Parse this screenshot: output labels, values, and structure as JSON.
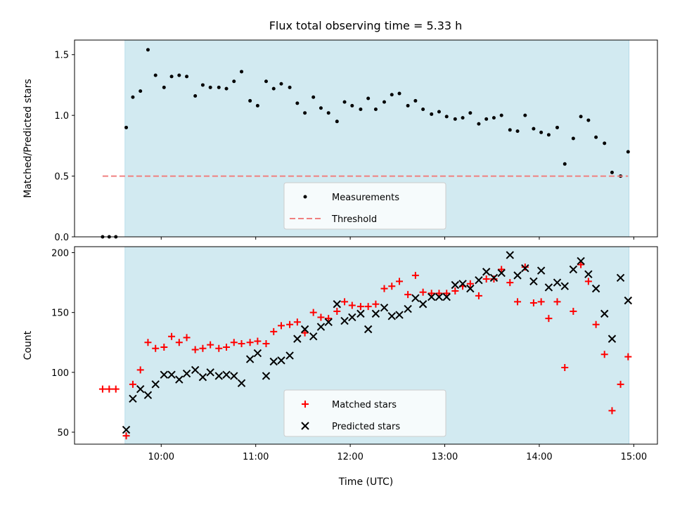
{
  "figure": {
    "title": "Flux total observing time = 5.33 h"
  },
  "colors": {
    "observing_band": "#add8e6",
    "measurements": "#000000",
    "threshold": "#f08080",
    "matched": "#ff0000",
    "predicted": "#000000"
  },
  "chart_data": [
    {
      "type": "scatter",
      "name": "ratio-panel",
      "xlabel": "",
      "ylabel": "Matched/Predicted stars",
      "x_unit": "hours UTC",
      "xlim": [
        9.083,
        15.25
      ],
      "ylim": [
        0.0,
        1.62
      ],
      "yticks": [
        0.0,
        0.5,
        1.0,
        1.5
      ],
      "ytick_labels": [
        "0.0",
        "0.5",
        "1.0",
        "1.5"
      ],
      "xticks": [
        10,
        11,
        12,
        13,
        14,
        15
      ],
      "shaded_region": [
        9.617,
        14.95
      ],
      "legend_position": "lower center",
      "series": [
        {
          "name": "Measurements",
          "marker": "dot",
          "points": [
            [
              9.38,
              0.0
            ],
            [
              9.45,
              0.0
            ],
            [
              9.52,
              0.0
            ],
            [
              9.63,
              0.9
            ],
            [
              9.7,
              1.15
            ],
            [
              9.78,
              1.2
            ],
            [
              9.86,
              1.54
            ],
            [
              9.94,
              1.33
            ],
            [
              10.03,
              1.23
            ],
            [
              10.11,
              1.32
            ],
            [
              10.19,
              1.33
            ],
            [
              10.27,
              1.32
            ],
            [
              10.36,
              1.16
            ],
            [
              10.44,
              1.25
            ],
            [
              10.52,
              1.23
            ],
            [
              10.61,
              1.23
            ],
            [
              10.69,
              1.22
            ],
            [
              10.77,
              1.28
            ],
            [
              10.85,
              1.36
            ],
            [
              10.94,
              1.12
            ],
            [
              11.02,
              1.08
            ],
            [
              11.11,
              1.28
            ],
            [
              11.19,
              1.22
            ],
            [
              11.27,
              1.26
            ],
            [
              11.36,
              1.23
            ],
            [
              11.44,
              1.1
            ],
            [
              11.52,
              1.02
            ],
            [
              11.61,
              1.15
            ],
            [
              11.69,
              1.06
            ],
            [
              11.77,
              1.02
            ],
            [
              11.86,
              0.95
            ],
            [
              11.94,
              1.11
            ],
            [
              12.02,
              1.08
            ],
            [
              12.11,
              1.05
            ],
            [
              12.19,
              1.14
            ],
            [
              12.27,
              1.05
            ],
            [
              12.36,
              1.11
            ],
            [
              12.44,
              1.17
            ],
            [
              12.52,
              1.18
            ],
            [
              12.61,
              1.08
            ],
            [
              12.69,
              1.12
            ],
            [
              12.77,
              1.05
            ],
            [
              12.86,
              1.01
            ],
            [
              12.94,
              1.03
            ],
            [
              13.02,
              0.99
            ],
            [
              13.11,
              0.97
            ],
            [
              13.19,
              0.98
            ],
            [
              13.27,
              1.02
            ],
            [
              13.36,
              0.93
            ],
            [
              13.44,
              0.97
            ],
            [
              13.52,
              0.98
            ],
            [
              13.6,
              1.0
            ],
            [
              13.69,
              0.88
            ],
            [
              13.77,
              0.87
            ],
            [
              13.85,
              1.0
            ],
            [
              13.94,
              0.89
            ],
            [
              14.02,
              0.86
            ],
            [
              14.1,
              0.84
            ],
            [
              14.19,
              0.9
            ],
            [
              14.27,
              0.6
            ],
            [
              14.36,
              0.81
            ],
            [
              14.44,
              0.99
            ],
            [
              14.52,
              0.96
            ],
            [
              14.6,
              0.82
            ],
            [
              14.69,
              0.77
            ],
            [
              14.77,
              0.53
            ],
            [
              14.86,
              0.5
            ],
            [
              14.94,
              0.7
            ]
          ]
        },
        {
          "name": "Threshold",
          "style": "dashed",
          "points": [
            [
              9.38,
              0.5
            ],
            [
              14.94,
              0.5
            ]
          ]
        }
      ]
    },
    {
      "type": "scatter",
      "name": "count-panel",
      "xlabel": "Time (UTC)",
      "ylabel": "Count",
      "x_unit": "hours UTC",
      "xlim": [
        9.083,
        15.25
      ],
      "ylim": [
        40,
        205
      ],
      "yticks": [
        50,
        100,
        150,
        200
      ],
      "ytick_labels": [
        "50",
        "100",
        "150",
        "200"
      ],
      "xticks": [
        10,
        11,
        12,
        13,
        14,
        15
      ],
      "xtick_labels": [
        "10:00",
        "11:00",
        "12:00",
        "13:00",
        "14:00",
        "15:00"
      ],
      "shaded_region": [
        9.617,
        14.95
      ],
      "legend_position": "lower center",
      "series": [
        {
          "name": "Matched stars",
          "marker": "plus",
          "points": [
            [
              9.38,
              86
            ],
            [
              9.45,
              86
            ],
            [
              9.52,
              86
            ],
            [
              9.63,
              47
            ],
            [
              9.7,
              90
            ],
            [
              9.78,
              102
            ],
            [
              9.86,
              125
            ],
            [
              9.94,
              120
            ],
            [
              10.03,
              121
            ],
            [
              10.11,
              130
            ],
            [
              10.19,
              125
            ],
            [
              10.27,
              129
            ],
            [
              10.36,
              119
            ],
            [
              10.44,
              120
            ],
            [
              10.52,
              123
            ],
            [
              10.61,
              120
            ],
            [
              10.69,
              121
            ],
            [
              10.77,
              125
            ],
            [
              10.85,
              124
            ],
            [
              10.94,
              125
            ],
            [
              11.02,
              126
            ],
            [
              11.11,
              124
            ],
            [
              11.19,
              134
            ],
            [
              11.27,
              139
            ],
            [
              11.36,
              140
            ],
            [
              11.44,
              142
            ],
            [
              11.52,
              133
            ],
            [
              11.61,
              150
            ],
            [
              11.69,
              146
            ],
            [
              11.77,
              145
            ],
            [
              11.86,
              151
            ],
            [
              11.94,
              159
            ],
            [
              12.02,
              156
            ],
            [
              12.11,
              155
            ],
            [
              12.19,
              155
            ],
            [
              12.27,
              157
            ],
            [
              12.36,
              170
            ],
            [
              12.44,
              172
            ],
            [
              12.52,
              176
            ],
            [
              12.61,
              165
            ],
            [
              12.69,
              181
            ],
            [
              12.77,
              167
            ],
            [
              12.86,
              166
            ],
            [
              12.94,
              166
            ],
            [
              13.02,
              166
            ],
            [
              13.11,
              168
            ],
            [
              13.19,
              172
            ],
            [
              13.27,
              174
            ],
            [
              13.36,
              164
            ],
            [
              13.44,
              178
            ],
            [
              13.52,
              178
            ],
            [
              13.6,
              186
            ],
            [
              13.69,
              175
            ],
            [
              13.77,
              159
            ],
            [
              13.85,
              188
            ],
            [
              13.94,
              158
            ],
            [
              14.02,
              159
            ],
            [
              14.1,
              145
            ],
            [
              14.19,
              159
            ],
            [
              14.27,
              104
            ],
            [
              14.36,
              151
            ],
            [
              14.44,
              190
            ],
            [
              14.52,
              176
            ],
            [
              14.6,
              140
            ],
            [
              14.69,
              115
            ],
            [
              14.77,
              68
            ],
            [
              14.86,
              90
            ],
            [
              14.94,
              113
            ]
          ]
        },
        {
          "name": "Predicted stars",
          "marker": "x",
          "points": [
            [
              9.63,
              52
            ],
            [
              9.7,
              78
            ],
            [
              9.78,
              86
            ],
            [
              9.86,
              81
            ],
            [
              9.94,
              90
            ],
            [
              10.03,
              98
            ],
            [
              10.11,
              98
            ],
            [
              10.19,
              94
            ],
            [
              10.27,
              99
            ],
            [
              10.36,
              102
            ],
            [
              10.44,
              96
            ],
            [
              10.52,
              100
            ],
            [
              10.61,
              97
            ],
            [
              10.69,
              98
            ],
            [
              10.77,
              97
            ],
            [
              10.85,
              91
            ],
            [
              10.94,
              111
            ],
            [
              11.02,
              116
            ],
            [
              11.11,
              97
            ],
            [
              11.19,
              109
            ],
            [
              11.27,
              110
            ],
            [
              11.36,
              114
            ],
            [
              11.44,
              128
            ],
            [
              11.52,
              136
            ],
            [
              11.61,
              130
            ],
            [
              11.69,
              138
            ],
            [
              11.77,
              142
            ],
            [
              11.86,
              157
            ],
            [
              11.94,
              143
            ],
            [
              12.02,
              146
            ],
            [
              12.11,
              149
            ],
            [
              12.19,
              136
            ],
            [
              12.27,
              149
            ],
            [
              12.36,
              154
            ],
            [
              12.44,
              147
            ],
            [
              12.52,
              148
            ],
            [
              12.61,
              153
            ],
            [
              12.69,
              162
            ],
            [
              12.77,
              157
            ],
            [
              12.86,
              163
            ],
            [
              12.94,
              163
            ],
            [
              13.02,
              163
            ],
            [
              13.11,
              173
            ],
            [
              13.19,
              174
            ],
            [
              13.27,
              170
            ],
            [
              13.36,
              177
            ],
            [
              13.44,
              184
            ],
            [
              13.52,
              179
            ],
            [
              13.6,
              183
            ],
            [
              13.69,
              198
            ],
            [
              13.77,
              181
            ],
            [
              13.85,
              187
            ],
            [
              13.94,
              176
            ],
            [
              14.02,
              185
            ],
            [
              14.1,
              171
            ],
            [
              14.19,
              175
            ],
            [
              14.27,
              172
            ],
            [
              14.36,
              186
            ],
            [
              14.44,
              193
            ],
            [
              14.52,
              182
            ],
            [
              14.6,
              170
            ],
            [
              14.69,
              149
            ],
            [
              14.77,
              128
            ],
            [
              14.86,
              179
            ],
            [
              14.94,
              160
            ]
          ]
        }
      ]
    }
  ]
}
